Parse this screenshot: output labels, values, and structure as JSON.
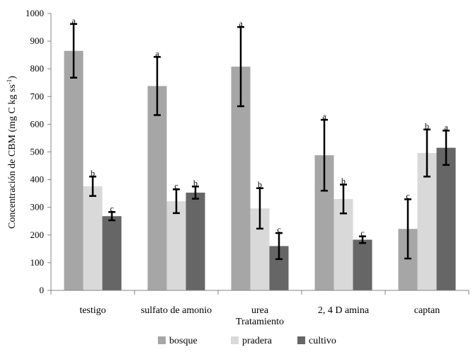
{
  "chart_data": {
    "type": "bar",
    "title": "",
    "xlabel": "Tratamiento",
    "ylabel": "Concentración de CBM (mg C kg ss",
    "ylabel_sup": "-1",
    "ylabel_end": ")",
    "ylim": [
      0,
      1000
    ],
    "yticks": [
      0,
      100,
      200,
      300,
      400,
      500,
      600,
      700,
      800,
      900,
      1000
    ],
    "categories": [
      "testigo",
      "sulfato de amonio",
      "urea",
      "2, 4 D amina",
      "captan"
    ],
    "series": [
      {
        "name": "bosque",
        "color": "#a6a6a6",
        "values": [
          865,
          738,
          808,
          488,
          222
        ],
        "errors": [
          97,
          105,
          143,
          128,
          107
        ],
        "letters": [
          "a",
          "a",
          "a",
          "a",
          "c"
        ]
      },
      {
        "name": "pradera",
        "color": "#d9d9d9",
        "values": [
          376,
          322,
          296,
          330,
          496
        ],
        "errors": [
          35,
          43,
          73,
          52,
          85
        ],
        "letters": [
          "b",
          "c",
          "b",
          "b",
          "b"
        ]
      },
      {
        "name": "cultivo",
        "color": "#666666",
        "values": [
          268,
          353,
          160,
          183,
          515
        ],
        "errors": [
          15,
          22,
          47,
          12,
          62
        ],
        "letters": [
          "c",
          "b",
          "c",
          "c",
          "a"
        ]
      }
    ]
  }
}
